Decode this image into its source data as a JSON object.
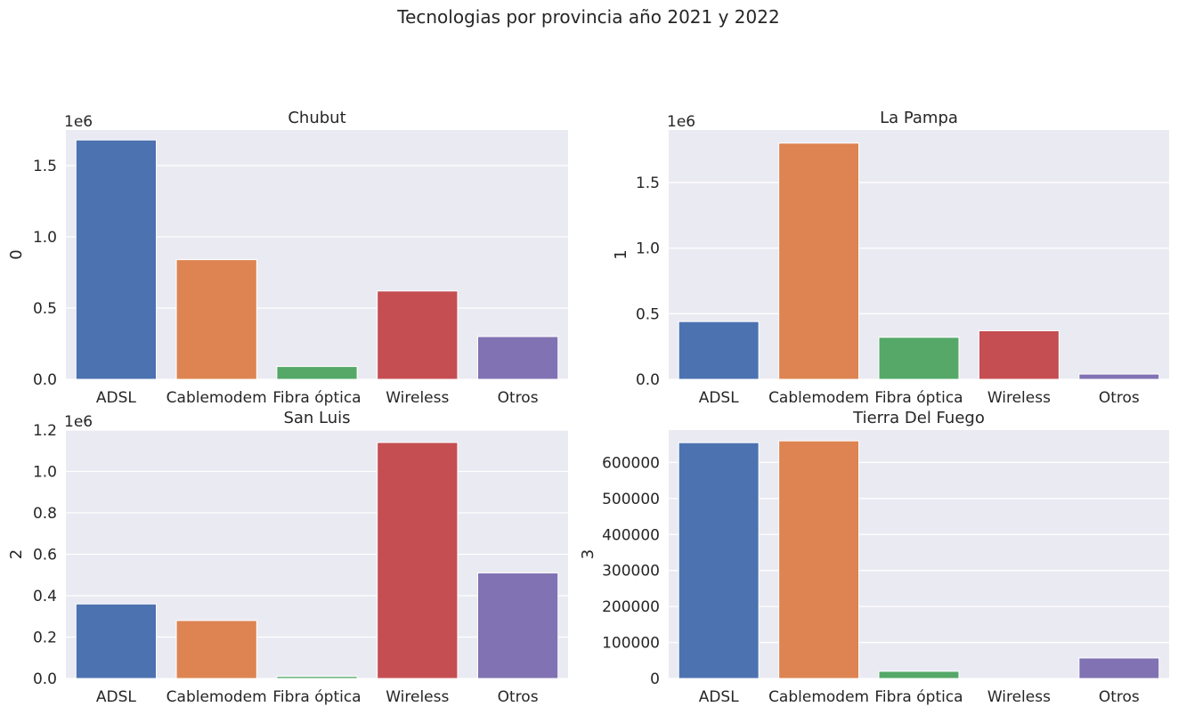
{
  "chart_data": {
    "type": "bar",
    "title": "Tecnologias por provincia año 2021 y 2022",
    "categories": [
      "ADSL",
      "Cablemodem",
      "Fibra óptica",
      "Wireless",
      "Otros"
    ],
    "colors": [
      "#4c72b0",
      "#dd8452",
      "#55a868",
      "#c44e52",
      "#8172b3"
    ],
    "grid": true,
    "subplots": [
      {
        "title": "Chubut",
        "ylabel": "0",
        "offset_label": "1e6",
        "ylim": [
          0,
          1.75
        ],
        "yticks": [
          0,
          0.5,
          1.0,
          1.5
        ],
        "ytick_labels": [
          "0.0",
          "0.5",
          "1.0",
          "1.5"
        ],
        "values": [
          1.68,
          0.84,
          0.09,
          0.62,
          0.3
        ]
      },
      {
        "title": "La Pampa",
        "ylabel": "1",
        "offset_label": "1e6",
        "ylim": [
          0,
          1.9
        ],
        "yticks": [
          0,
          0.5,
          1.0,
          1.5
        ],
        "ytick_labels": [
          "0.0",
          "0.5",
          "1.0",
          "1.5"
        ],
        "values": [
          0.44,
          1.8,
          0.32,
          0.37,
          0.04
        ]
      },
      {
        "title": "San Luis",
        "ylabel": "2",
        "offset_label": "1e6",
        "ylim": [
          0,
          1.2
        ],
        "yticks": [
          0,
          0.2,
          0.4,
          0.6,
          0.8,
          1.0,
          1.2
        ],
        "ytick_labels": [
          "0.0",
          "0.2",
          "0.4",
          "0.6",
          "0.8",
          "1.0",
          "1.2"
        ],
        "values": [
          0.36,
          0.28,
          0.01,
          1.14,
          0.51
        ]
      },
      {
        "title": "Tierra Del Fuego",
        "ylabel": "3",
        "offset_label": "",
        "ylim": [
          0,
          690000
        ],
        "yticks": [
          0,
          100000,
          200000,
          300000,
          400000,
          500000,
          600000
        ],
        "ytick_labels": [
          "0",
          "100000",
          "200000",
          "300000",
          "400000",
          "500000",
          "600000"
        ],
        "values": [
          655000,
          660000,
          20000,
          0,
          57000
        ]
      }
    ]
  }
}
